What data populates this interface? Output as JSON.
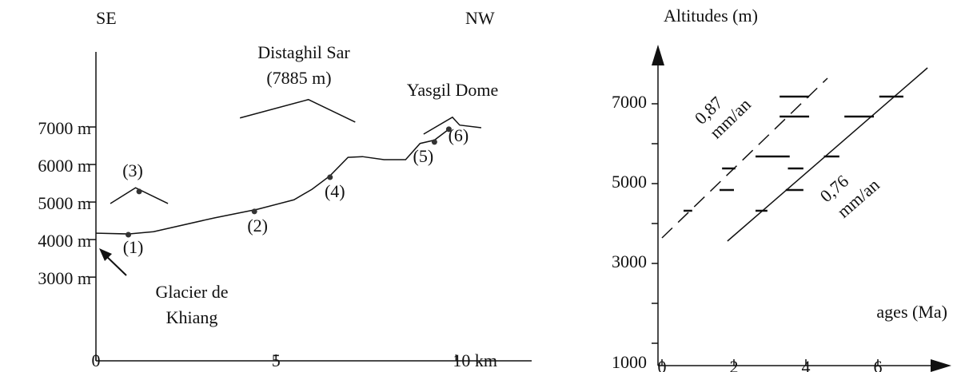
{
  "chart_data": [
    {
      "type": "line",
      "annotations": [
        "SE",
        "NW",
        "Distaghil Sar",
        "(7885 m)",
        "Yasgil Dome",
        "Glacier de",
        "Khiang"
      ],
      "color": "#111",
      "xlim": [
        0,
        12.1
      ],
      "xticks": [
        0,
        5,
        {
          "value": 10,
          "label": "10 km"
        }
      ],
      "ylim": [
        770,
        9000
      ],
      "yticks": [
        {
          "value": 3000,
          "label": "3000 m"
        },
        {
          "value": 4000,
          "label": "4000 m"
        },
        {
          "value": 5000,
          "label": "5000 m"
        },
        {
          "value": 6000,
          "label": "6000 m"
        },
        {
          "value": 7000,
          "label": "7000 m"
        }
      ],
      "series": [
        {
          "x": [
            0,
            0.9,
            1.6,
            3.3,
            4.5,
            5.5,
            6.0,
            6.5,
            7.0,
            7.4,
            8.0,
            8.6,
            9.0,
            9.4,
            9.8
          ],
          "values": [
            4170,
            4150,
            4210,
            4580,
            4810,
            5060,
            5340,
            5700,
            6190,
            6210,
            6130,
            6130,
            6560,
            6650,
            6940
          ]
        },
        {
          "x": [
            4.0,
            5.9,
            7.2
          ],
          "values": [
            7240,
            7730,
            7130
          ]
        },
        {
          "x": [
            0.4,
            1.1,
            2.0
          ],
          "values": [
            4960,
            5380,
            4960
          ]
        },
        {
          "x": [
            9.1,
            9.9,
            10.1,
            10.7
          ],
          "values": [
            6810,
            7260,
            7050,
            6980
          ]
        }
      ],
      "points": {
        "x": [
          0.9,
          4.4,
          1.2,
          6.5,
          9.4,
          9.8
        ],
        "values": [
          4130,
          4750,
          5280,
          5660,
          6600,
          6940
        ],
        "labels": [
          "(1)",
          "(2)",
          "(3)",
          "(4)",
          "(5)",
          "(6)"
        ]
      }
    },
    {
      "type": "range",
      "y_label": "Altitudes (m)",
      "x_label": "ages (Ma)",
      "color": "#111",
      "xlim": [
        0,
        7.8
      ],
      "xticks": [
        0,
        2,
        4,
        6
      ],
      "ylim": [
        500,
        8000
      ],
      "yticks": [
        1000,
        3000,
        5000,
        7000
      ],
      "minor_yticks": [
        2000,
        4000,
        6000
      ],
      "ranges": {
        "x_start": [
          0.6,
          1.6,
          1.67,
          2.6,
          2.6,
          3.27,
          3.27,
          3.44,
          3.5,
          4.5,
          5.07,
          6.04
        ],
        "x_end": [
          0.84,
          2.0,
          2.04,
          2.93,
          3.55,
          4.09,
          4.09,
          3.93,
          3.93,
          4.93,
          5.89,
          6.71
        ],
        "values": [
          4320,
          4840,
          5380,
          4320,
          5680,
          6680,
          7180,
          4840,
          5380,
          5680,
          6680,
          7180
        ]
      },
      "lines": [
        {
          "labels": [
            "0,87",
            "mm/an"
          ],
          "style": "dashed",
          "x": [
            0,
            4.6
          ],
          "values": [
            3640,
            7640
          ]
        },
        {
          "labels": [
            "0,76",
            "mm/an"
          ],
          "style": "solid",
          "x": [
            1.82,
            7.38
          ],
          "values": [
            3560,
            7900
          ]
        }
      ]
    }
  ]
}
